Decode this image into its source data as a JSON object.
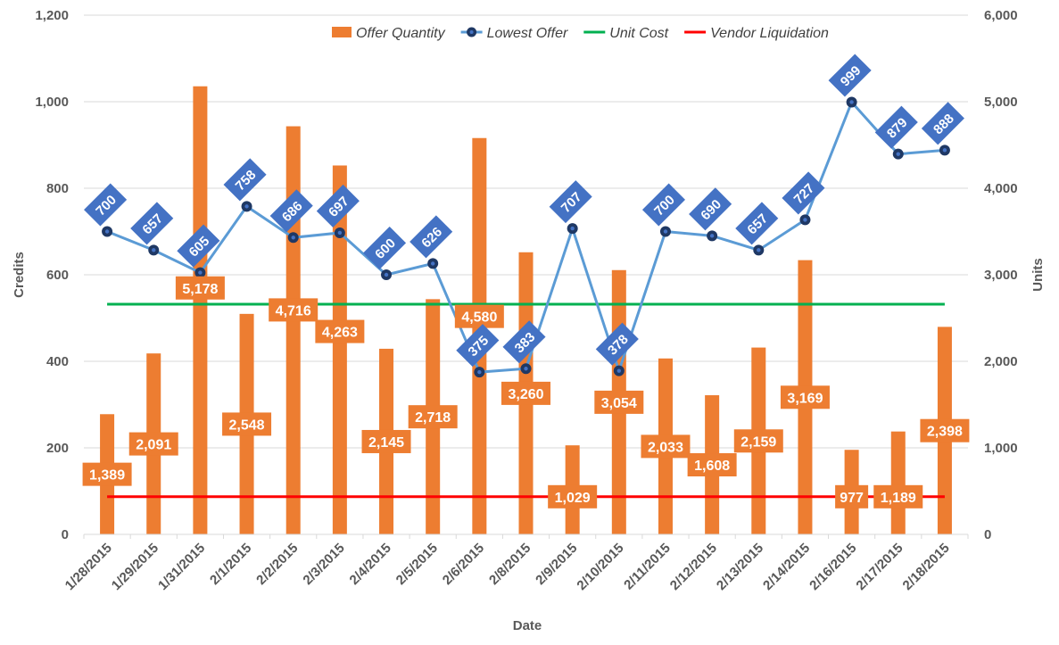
{
  "chart_data": {
    "type": "bar+line",
    "title": "",
    "xlabel": "Date",
    "ylabel_left": "Credits",
    "ylabel_right": "Units",
    "ylim_left": [
      0,
      1200
    ],
    "ylim_right": [
      0,
      6000
    ],
    "yticks_left": [
      "0",
      "200",
      "400",
      "600",
      "800",
      "1,000",
      "1,200"
    ],
    "yticks_right": [
      "0",
      "1,000",
      "2,000",
      "3,000",
      "4,000",
      "5,000",
      "6,000"
    ],
    "grid": true,
    "legend_position": "top",
    "categories": [
      "1/28/2015",
      "1/29/2015",
      "1/31/2015",
      "2/1/2015",
      "2/2/2015",
      "2/3/2015",
      "2/4/2015",
      "2/5/2015",
      "2/6/2015",
      "2/8/2015",
      "2/9/2015",
      "2/10/2015",
      "2/11/2015",
      "2/12/2015",
      "2/13/2015",
      "2/14/2015",
      "2/16/2015",
      "2/17/2015",
      "2/18/2015"
    ],
    "series": [
      {
        "name": "Offer Quantity",
        "type": "bar",
        "axis": "right",
        "color": "#ED7D31",
        "values": [
          1389,
          2091,
          5178,
          2548,
          4716,
          4263,
          2145,
          2718,
          4580,
          3260,
          1029,
          3054,
          2033,
          1608,
          2159,
          3169,
          977,
          1189,
          2398
        ],
        "labels": [
          "1,389",
          "2,091",
          "5,178",
          "2,548",
          "4,716",
          "4,263",
          "2,145",
          "2,718",
          "4,580",
          "3,260",
          "1,029",
          "3,054",
          "2,033",
          "1,608",
          "2,159",
          "3,169",
          "977",
          "1,189",
          "2,398"
        ]
      },
      {
        "name": "Lowest Offer",
        "type": "line",
        "axis": "left",
        "color": "#5B9BD5",
        "marker_color": "#1F3864",
        "values": [
          700,
          657,
          605,
          758,
          686,
          697,
          600,
          626,
          375,
          383,
          707,
          378,
          700,
          690,
          657,
          727,
          999,
          879,
          888
        ],
        "labels": [
          "700",
          "657",
          "605",
          "758",
          "686",
          "697",
          "600",
          "626",
          "375",
          "383",
          "707",
          "378",
          "700",
          "690",
          "657",
          "727",
          "999",
          "879",
          "888"
        ]
      },
      {
        "name": "Unit Cost",
        "type": "line",
        "axis": "left",
        "color": "#00B050",
        "constant": 532
      },
      {
        "name": "Vendor Liquidation",
        "type": "line",
        "axis": "left",
        "color": "#FF0000",
        "constant": 87
      }
    ]
  }
}
